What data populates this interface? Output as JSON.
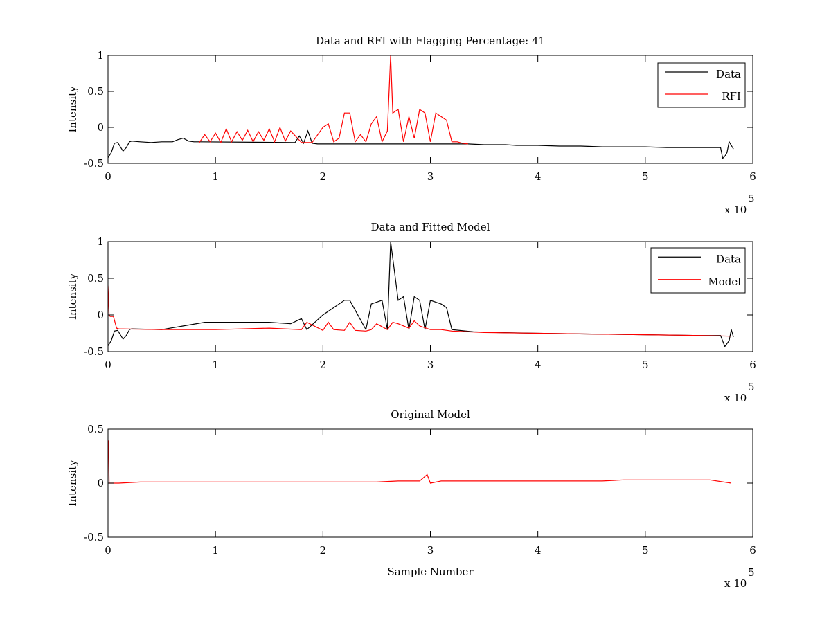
{
  "figure": {
    "background": "#ffffff",
    "colors": {
      "data": "#000000",
      "model": "#ff0000",
      "axes": "#000000"
    }
  },
  "chart_data": [
    {
      "type": "line",
      "title": "Data and RFI with Flagging Percentage: 41",
      "xlabel": "",
      "ylabel": "Intensity",
      "xlim": [
        0,
        6
      ],
      "ylim": [
        -0.5,
        1
      ],
      "x_scale_label": "x 10",
      "x_scale_exponent": "5",
      "xticks": [
        "0",
        "1",
        "2",
        "3",
        "4",
        "5",
        "6"
      ],
      "yticks": [
        "-0.5",
        "0",
        "0.5",
        "1"
      ],
      "ytick_values": [
        -0.5,
        0,
        0.5,
        1
      ],
      "legend": [
        {
          "label": "Data",
          "color": "#000000"
        },
        {
          "label": "RFI",
          "color": "#ff0000"
        }
      ],
      "legend_position": "top-right",
      "series": [
        {
          "name": "Data",
          "color": "#000000",
          "x": [
            0.0,
            0.03,
            0.06,
            0.09,
            0.14,
            0.17,
            0.2,
            0.22,
            0.3,
            0.4,
            0.5,
            0.6,
            0.65,
            0.7,
            0.75,
            0.8,
            0.85,
            1.74,
            1.78,
            1.82,
            1.86,
            1.9,
            1.95,
            3.35,
            3.5,
            3.6,
            3.7,
            3.8,
            4.0,
            4.2,
            4.4,
            4.6,
            4.8,
            5.0,
            5.2,
            5.4,
            5.6,
            5.7,
            5.72,
            5.74,
            5.76,
            5.78,
            5.8,
            5.82
          ],
          "y": [
            -0.42,
            -0.35,
            -0.22,
            -0.21,
            -0.33,
            -0.28,
            -0.2,
            -0.19,
            -0.2,
            -0.21,
            -0.2,
            -0.2,
            -0.17,
            -0.15,
            -0.19,
            -0.2,
            -0.2,
            -0.21,
            -0.12,
            -0.22,
            -0.05,
            -0.22,
            -0.23,
            -0.23,
            -0.24,
            -0.24,
            -0.24,
            -0.25,
            -0.25,
            -0.26,
            -0.26,
            -0.27,
            -0.27,
            -0.27,
            -0.28,
            -0.28,
            -0.28,
            -0.28,
            -0.43,
            -0.4,
            -0.35,
            -0.2,
            -0.25,
            -0.3
          ]
        },
        {
          "name": "RFI",
          "color": "#ff0000",
          "x": [
            0.85,
            0.9,
            0.95,
            1.0,
            1.05,
            1.1,
            1.15,
            1.2,
            1.25,
            1.3,
            1.35,
            1.4,
            1.45,
            1.5,
            1.55,
            1.6,
            1.65,
            1.7,
            1.8,
            1.9,
            2.0,
            2.05,
            2.1,
            2.15,
            2.2,
            2.25,
            2.3,
            2.35,
            2.4,
            2.45,
            2.5,
            2.55,
            2.6,
            2.63,
            2.65,
            2.7,
            2.75,
            2.8,
            2.85,
            2.9,
            2.95,
            3.0,
            3.05,
            3.1,
            3.15,
            3.2,
            3.25,
            3.3,
            3.35
          ],
          "y": [
            -0.21,
            -0.1,
            -0.2,
            -0.08,
            -0.21,
            -0.02,
            -0.2,
            -0.06,
            -0.18,
            -0.04,
            -0.2,
            -0.06,
            -0.18,
            -0.02,
            -0.2,
            0.0,
            -0.19,
            -0.05,
            -0.21,
            -0.21,
            0.0,
            0.05,
            -0.2,
            -0.15,
            0.2,
            0.2,
            -0.2,
            -0.1,
            -0.2,
            0.05,
            0.15,
            -0.2,
            -0.05,
            1.0,
            0.2,
            0.25,
            -0.2,
            0.15,
            -0.15,
            0.25,
            0.2,
            -0.2,
            0.2,
            0.15,
            0.1,
            -0.2,
            -0.2,
            -0.22,
            -0.23
          ]
        }
      ]
    },
    {
      "type": "line",
      "title": "Data and Fitted Model",
      "xlabel": "",
      "ylabel": "Intensity",
      "xlim": [
        0,
        6
      ],
      "ylim": [
        -0.5,
        1
      ],
      "x_scale_label": "x 10",
      "x_scale_exponent": "5",
      "xticks": [
        "0",
        "1",
        "2",
        "3",
        "4",
        "5",
        "6"
      ],
      "yticks": [
        "-0.5",
        "0",
        "0.5",
        "1"
      ],
      "ytick_values": [
        -0.5,
        0,
        0.5,
        1
      ],
      "legend": [
        {
          "label": "Data",
          "color": "#000000"
        },
        {
          "label": "Model",
          "color": "#ff0000"
        }
      ],
      "legend_position": "top-right",
      "series": [
        {
          "name": "Data",
          "color": "#000000",
          "x": [
            0.0,
            0.03,
            0.06,
            0.09,
            0.14,
            0.17,
            0.2,
            0.22,
            0.5,
            0.7,
            0.9,
            1.1,
            1.3,
            1.5,
            1.7,
            1.8,
            1.85,
            2.0,
            2.2,
            2.25,
            2.4,
            2.45,
            2.55,
            2.6,
            2.63,
            2.7,
            2.75,
            2.8,
            2.85,
            2.9,
            2.95,
            3.0,
            3.1,
            3.15,
            3.2,
            3.4,
            3.6,
            4.0,
            4.5,
            5.0,
            5.5,
            5.7,
            5.74,
            5.78,
            5.8,
            5.82
          ],
          "y": [
            -0.42,
            -0.35,
            -0.22,
            -0.21,
            -0.33,
            -0.28,
            -0.2,
            -0.19,
            -0.2,
            -0.15,
            -0.1,
            -0.1,
            -0.1,
            -0.1,
            -0.12,
            -0.05,
            -0.2,
            0.0,
            0.2,
            0.2,
            -0.2,
            0.15,
            0.2,
            -0.2,
            1.0,
            0.2,
            0.25,
            -0.2,
            0.25,
            0.2,
            -0.2,
            0.2,
            0.15,
            0.1,
            -0.2,
            -0.23,
            -0.24,
            -0.25,
            -0.26,
            -0.27,
            -0.28,
            -0.28,
            -0.43,
            -0.35,
            -0.2,
            -0.3
          ]
        },
        {
          "name": "Model",
          "color": "#ff0000",
          "x": [
            0.0,
            0.01,
            0.02,
            0.05,
            0.08,
            0.1,
            0.5,
            1.0,
            1.5,
            1.8,
            1.85,
            2.0,
            2.05,
            2.1,
            2.2,
            2.25,
            2.3,
            2.4,
            2.45,
            2.5,
            2.6,
            2.65,
            2.7,
            2.8,
            2.85,
            2.9,
            3.0,
            3.1,
            3.2,
            3.5,
            4.0,
            4.5,
            5.0,
            5.5,
            5.8
          ],
          "y": [
            0.4,
            0.0,
            -0.02,
            -0.02,
            -0.18,
            -0.19,
            -0.2,
            -0.2,
            -0.18,
            -0.2,
            -0.1,
            -0.21,
            -0.1,
            -0.2,
            -0.21,
            -0.1,
            -0.21,
            -0.22,
            -0.2,
            -0.12,
            -0.2,
            -0.1,
            -0.12,
            -0.18,
            -0.08,
            -0.15,
            -0.2,
            -0.2,
            -0.22,
            -0.24,
            -0.25,
            -0.26,
            -0.27,
            -0.28,
            -0.29
          ]
        }
      ]
    },
    {
      "type": "line",
      "title": "Original Model",
      "xlabel": "Sample Number",
      "ylabel": "Intensity",
      "xlim": [
        0,
        6
      ],
      "ylim": [
        -0.5,
        0.5
      ],
      "x_scale_label": "x 10",
      "x_scale_exponent": "5",
      "xticks": [
        "0",
        "1",
        "2",
        "3",
        "4",
        "5",
        "6"
      ],
      "yticks": [
        "-0.5",
        "0",
        "0.5"
      ],
      "ytick_values": [
        -0.5,
        0,
        0.5
      ],
      "legend": [],
      "series": [
        {
          "name": "Model",
          "color": "#ff0000",
          "x": [
            0.0,
            0.005,
            0.01,
            0.02,
            0.1,
            0.3,
            0.5,
            0.8,
            1.0,
            1.2,
            1.5,
            1.8,
            2.0,
            2.3,
            2.5,
            2.7,
            2.9,
            2.97,
            3.0,
            3.1,
            3.3,
            3.5,
            3.7,
            3.8,
            4.0,
            4.2,
            4.4,
            4.6,
            4.8,
            5.0,
            5.2,
            5.4,
            5.6,
            5.8
          ],
          "y": [
            0.4,
            0.38,
            0.0,
            0.0,
            0.0,
            0.01,
            0.01,
            0.01,
            0.01,
            0.01,
            0.01,
            0.01,
            0.01,
            0.01,
            0.01,
            0.02,
            0.02,
            0.08,
            0.0,
            0.02,
            0.02,
            0.02,
            0.02,
            0.02,
            0.02,
            0.02,
            0.02,
            0.02,
            0.03,
            0.03,
            0.03,
            0.03,
            0.03,
            0.0
          ]
        }
      ]
    }
  ]
}
